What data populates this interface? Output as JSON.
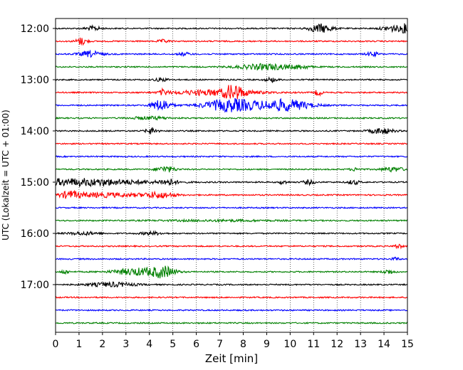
{
  "chart_data": {
    "type": "line",
    "title": "",
    "xlabel": "Zeit  [min]",
    "ylabel": "UTC (Lokalzeit = UTC + 01:00)",
    "xlim": [
      0,
      15
    ],
    "x_ticks": [
      "0",
      "1",
      "2",
      "3",
      "4",
      "5",
      "6",
      "7",
      "8",
      "9",
      "10",
      "11",
      "12",
      "13",
      "14",
      "15"
    ],
    "y_ticks": [
      "12:00",
      "13:00",
      "14:00",
      "15:00",
      "16:00",
      "17:00"
    ],
    "grid": "vertical-dotted",
    "trace_interval_minutes": 15,
    "series": [
      {
        "start": "12:00",
        "color": "#000000",
        "events": [
          [
            1.6,
            0.4,
            3
          ],
          [
            11.3,
            0.6,
            6
          ],
          [
            14.4,
            0.6,
            4
          ],
          [
            14.9,
            0.2,
            5
          ]
        ]
      },
      {
        "start": "12:15",
        "color": "#ff0000",
        "events": [
          [
            1.1,
            0.3,
            5
          ],
          [
            4.6,
            0.3,
            2
          ]
        ]
      },
      {
        "start": "12:30",
        "color": "#0000ff",
        "events": [
          [
            1.5,
            0.6,
            4
          ],
          [
            5.5,
            0.3,
            2
          ],
          [
            13.5,
            0.3,
            3
          ]
        ]
      },
      {
        "start": "12:45",
        "color": "#008000",
        "events": [
          [
            9.0,
            1.5,
            4
          ],
          [
            10.5,
            0.4,
            2
          ]
        ]
      },
      {
        "start": "13:00",
        "color": "#000000",
        "events": [
          [
            4.5,
            0.4,
            2
          ],
          [
            9.2,
            0.3,
            3
          ]
        ]
      },
      {
        "start": "13:15",
        "color": "#ff0000",
        "events": [
          [
            4.6,
            0.2,
            4
          ],
          [
            6.9,
            2.2,
            4
          ],
          [
            7.6,
            0.5,
            8
          ],
          [
            11.2,
            0.2,
            4
          ]
        ]
      },
      {
        "start": "13:30",
        "color": "#0000ff",
        "events": [
          [
            4.5,
            0.5,
            8
          ],
          [
            7.5,
            1.4,
            9
          ],
          [
            9.8,
            1.3,
            8
          ]
        ]
      },
      {
        "start": "13:45",
        "color": "#008000",
        "events": [
          [
            4.0,
            1.0,
            2
          ]
        ]
      },
      {
        "start": "14:00",
        "color": "#000000",
        "events": [
          [
            4.1,
            0.3,
            4
          ],
          [
            13.9,
            0.6,
            4
          ]
        ]
      },
      {
        "start": "14:15",
        "color": "#ff0000",
        "events": []
      },
      {
        "start": "14:30",
        "color": "#0000ff",
        "events": []
      },
      {
        "start": "14:45",
        "color": "#008000",
        "events": [
          [
            4.7,
            0.5,
            4
          ],
          [
            12.8,
            0.3,
            2
          ],
          [
            14.4,
            0.6,
            3
          ]
        ]
      },
      {
        "start": "15:00",
        "color": "#000000",
        "events": [
          [
            1.0,
            3.5,
            5
          ],
          [
            4.8,
            0.4,
            4
          ],
          [
            9.7,
            0.2,
            3
          ],
          [
            10.8,
            0.3,
            3
          ],
          [
            12.7,
            0.3,
            3
          ]
        ]
      },
      {
        "start": "15:15",
        "color": "#ff0000",
        "events": [
          [
            0.6,
            0.5,
            4
          ],
          [
            2.0,
            2.0,
            3
          ],
          [
            4.4,
            0.8,
            4
          ]
        ]
      },
      {
        "start": "15:30",
        "color": "#0000ff",
        "events": []
      },
      {
        "start": "15:45",
        "color": "#008000",
        "events": [
          [
            7.0,
            3.0,
            1
          ]
        ]
      },
      {
        "start": "16:00",
        "color": "#000000",
        "events": [
          [
            1.2,
            0.8,
            2
          ],
          [
            4.1,
            0.6,
            2
          ]
        ]
      },
      {
        "start": "16:15",
        "color": "#ff0000",
        "events": [
          [
            14.6,
            0.2,
            3
          ]
        ]
      },
      {
        "start": "16:30",
        "color": "#0000ff",
        "events": [
          [
            14.5,
            0.2,
            2
          ]
        ]
      },
      {
        "start": "16:45",
        "color": "#008000",
        "events": [
          [
            0.4,
            0.2,
            3
          ],
          [
            3.5,
            1.2,
            5
          ],
          [
            4.6,
            0.6,
            7
          ],
          [
            14.2,
            0.3,
            3
          ]
        ]
      },
      {
        "start": "17:00",
        "color": "#000000",
        "events": [
          [
            2.4,
            1.2,
            3
          ]
        ]
      },
      {
        "start": "17:15",
        "color": "#ff0000",
        "events": []
      },
      {
        "start": "17:30",
        "color": "#0000ff",
        "events": []
      },
      {
        "start": "17:45",
        "color": "#008000",
        "events": []
      }
    ]
  }
}
